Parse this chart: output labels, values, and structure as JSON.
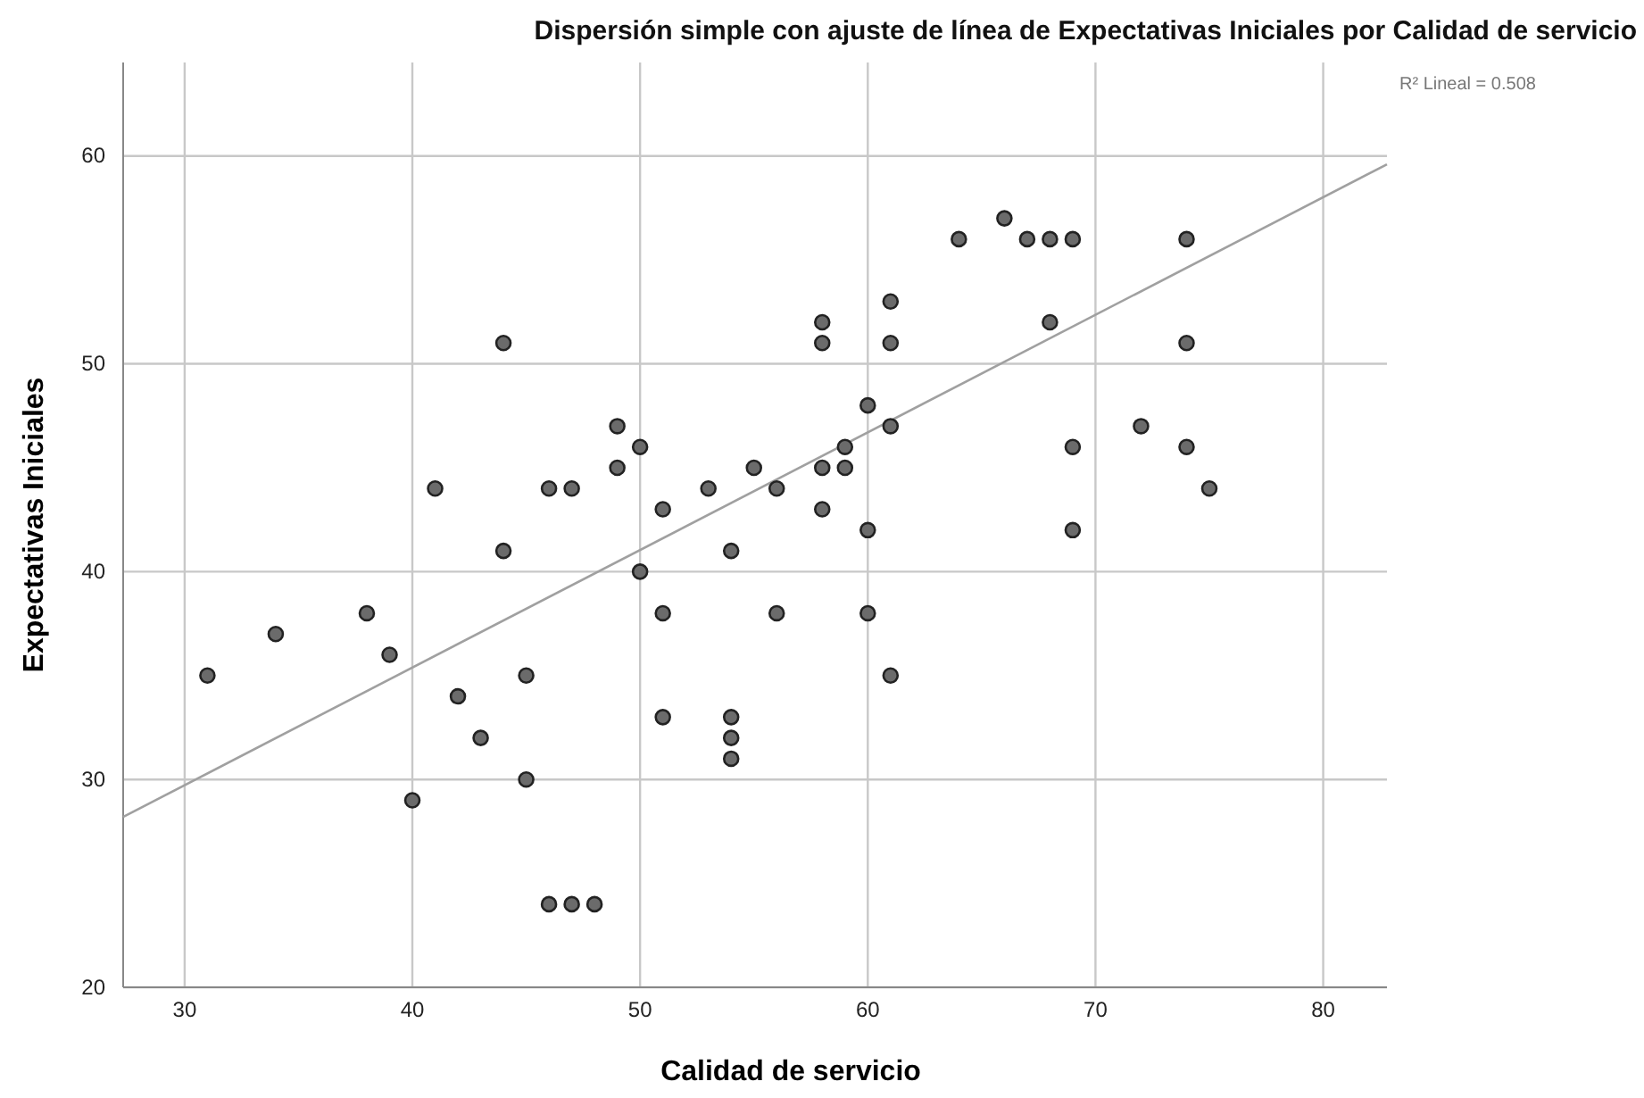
{
  "chart_data": {
    "type": "scatter",
    "title": "Dispersión simple con ajuste de línea de Expectativas Iniciales por Calidad de servicio",
    "xlabel": "Calidad de servicio",
    "ylabel": "Expectativas Iniciales",
    "xlim": [
      27.3,
      82.8
    ],
    "ylim": [
      20,
      64.5
    ],
    "xticks": [
      30,
      40,
      50,
      60,
      70,
      80
    ],
    "yticks": [
      20,
      30,
      40,
      50,
      60
    ],
    "grid": true,
    "marker": "circle",
    "annotations": [
      "R² Lineal = 0.508"
    ],
    "series": [
      {
        "color": "#6b6b6b",
        "x": [
          31,
          34,
          38,
          39,
          40,
          41,
          42,
          43,
          44,
          44,
          45,
          45,
          46,
          46,
          47,
          47,
          48,
          49,
          49,
          50,
          50,
          51,
          51,
          51,
          53,
          54,
          54,
          54,
          54,
          55,
          56,
          56,
          58,
          58,
          58,
          58,
          59,
          59,
          60,
          60,
          60,
          61,
          61,
          61,
          61,
          64,
          66,
          67,
          68,
          68,
          69,
          69,
          69,
          72,
          74,
          74,
          74,
          75
        ],
        "values": [
          35,
          37,
          38,
          36,
          29,
          44,
          34,
          32,
          51,
          41,
          35,
          30,
          44,
          24,
          24,
          44,
          24,
          47,
          45,
          46,
          40,
          43,
          38,
          33,
          44,
          41,
          33,
          32,
          31,
          45,
          44,
          38,
          52,
          51,
          45,
          43,
          46,
          45,
          48,
          42,
          38,
          53,
          51,
          47,
          35,
          56,
          57,
          56,
          56,
          52,
          56,
          46,
          42,
          47,
          56,
          51,
          46,
          44
        ]
      },
      {
        "type": "line",
        "color": "#a0a0a0",
        "marker": "none",
        "x": [
          27.3,
          82.8
        ],
        "values": [
          28.2,
          59.6
        ]
      }
    ]
  }
}
